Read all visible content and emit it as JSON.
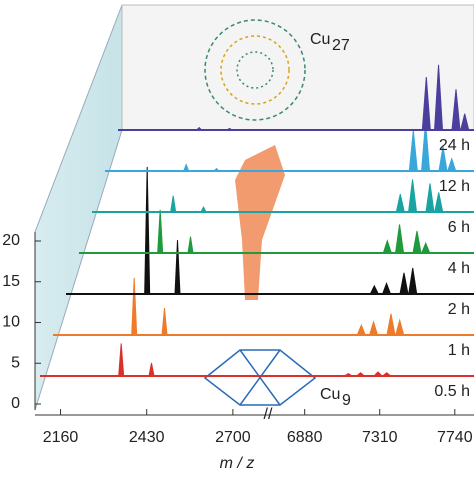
{
  "chart_data": {
    "type": "waterfall",
    "xlabel": "m / z",
    "xlim": [
      [
        2080,
        2810
      ],
      [
        6710,
        7850
      ]
    ],
    "xticks": [
      2160,
      2430,
      2700,
      6880,
      7310,
      7740
    ],
    "ylim": [
      0,
      20
    ],
    "yticks": [
      0,
      5,
      10,
      15,
      20
    ],
    "annotations": [
      {
        "text": "Cu",
        "sub": "27"
      },
      {
        "text": "Cu",
        "sub": "9"
      }
    ],
    "series": [
      {
        "name": "0.5 h",
        "color": "#d9302b",
        "x": [
          2350,
          2445,
          7130,
          7200,
          7300,
          7350
        ],
        "values": [
          4,
          1.6,
          0.3,
          0.4,
          0.5,
          0.4
        ]
      },
      {
        "name": "1 h",
        "color": "#ee7a2b",
        "x": [
          2350,
          2445,
          7130,
          7200,
          7300,
          7350
        ],
        "values": [
          7,
          3.3,
          1.2,
          1.6,
          2.6,
          1.8
        ]
      },
      {
        "name": "2 h",
        "color": "#111111",
        "x": [
          2350,
          2445,
          7130,
          7200,
          7300,
          7350
        ],
        "values": [
          15.6,
          6.6,
          1.0,
          1.3,
          2.6,
          3.2
        ]
      },
      {
        "name": "4 h",
        "color": "#1f9a3c",
        "x": [
          2350,
          2445,
          7130,
          7200,
          7300,
          7350
        ],
        "values": [
          5.3,
          2.0,
          1.5,
          3.5,
          2.7,
          1.2
        ]
      },
      {
        "name": "6 h",
        "color": "#1aa3a3",
        "x": [
          2350,
          2445,
          7130,
          7200,
          7300,
          7350
        ],
        "values": [
          2.0,
          0.6,
          2.2,
          4.0,
          3.5,
          2.4
        ]
      },
      {
        "name": "12 h",
        "color": "#3aa7dc",
        "x": [
          2350,
          2445,
          7130,
          7200,
          7300,
          7350
        ],
        "values": [
          0.8,
          0.3,
          5.0,
          6.0,
          3.0,
          1.5
        ]
      },
      {
        "name": "24 h",
        "color": "#4b3f9e",
        "x": [
          2350,
          2445,
          7130,
          7200,
          7300,
          7350
        ],
        "values": [
          0.3,
          0.2,
          6.5,
          8.0,
          5.0,
          2.0
        ]
      }
    ]
  }
}
